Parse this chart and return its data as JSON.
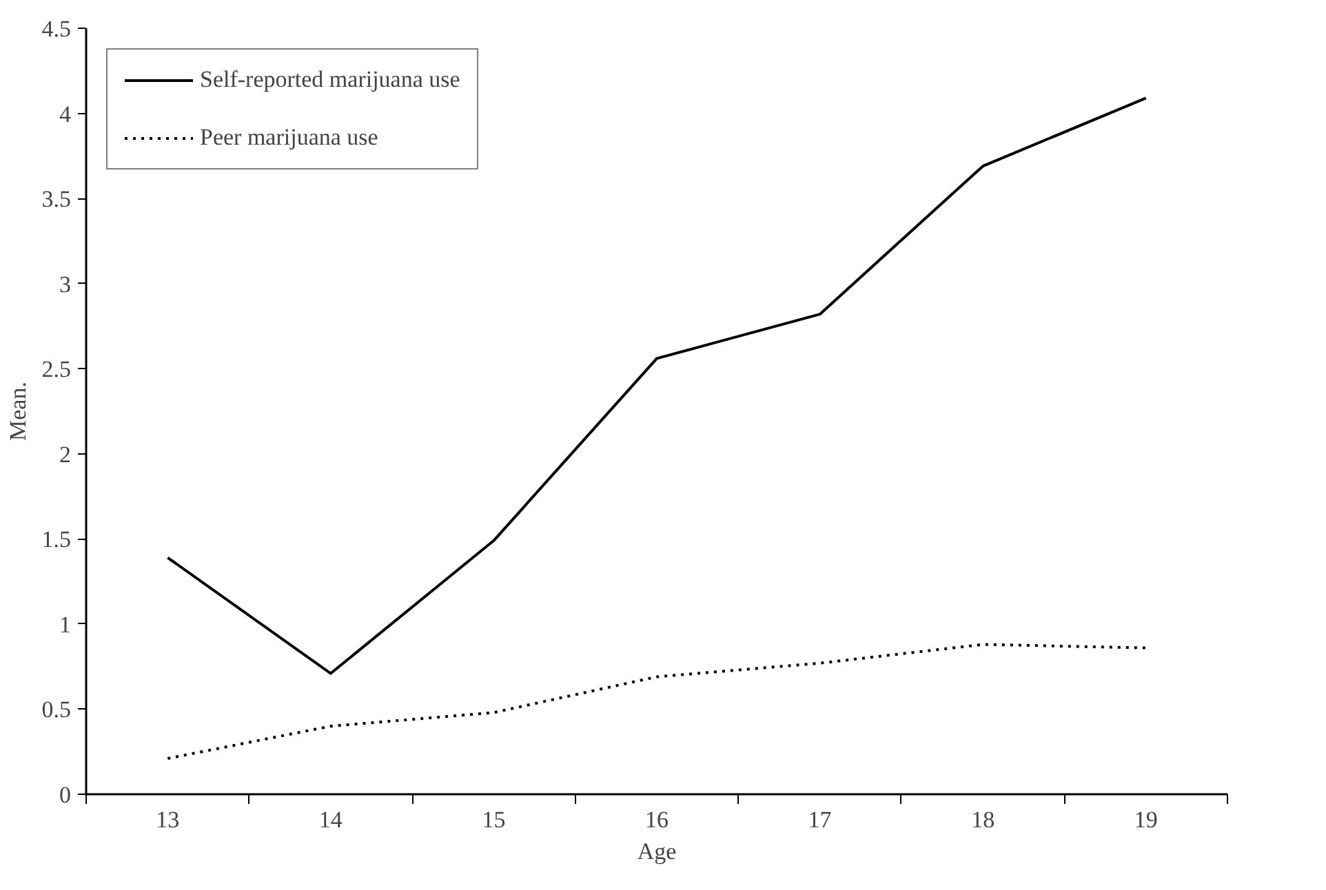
{
  "chart_data": {
    "type": "line",
    "xlabel": "Age",
    "ylabel": "Mean.",
    "categories": [
      "13",
      "14",
      "15",
      "16",
      "17",
      "18",
      "19"
    ],
    "series": [
      {
        "name": "Self-reported marijuana use",
        "color": "#000000",
        "line_style": "solid",
        "values": [
          1.39,
          0.71,
          1.49,
          2.56,
          2.82,
          3.69,
          4.09
        ]
      },
      {
        "name": "Peer marijuana use",
        "color": "#000000",
        "line_style": "dotted",
        "values": [
          0.21,
          0.4,
          0.48,
          0.69,
          0.77,
          0.88,
          0.86
        ]
      }
    ],
    "ylim": [
      0,
      4.5
    ],
    "yticks": [
      0,
      0.5,
      1,
      1.5,
      2,
      2.5,
      3,
      3.5,
      4,
      4.5
    ],
    "grid": false,
    "legend": "top left",
    "marker": "none"
  }
}
